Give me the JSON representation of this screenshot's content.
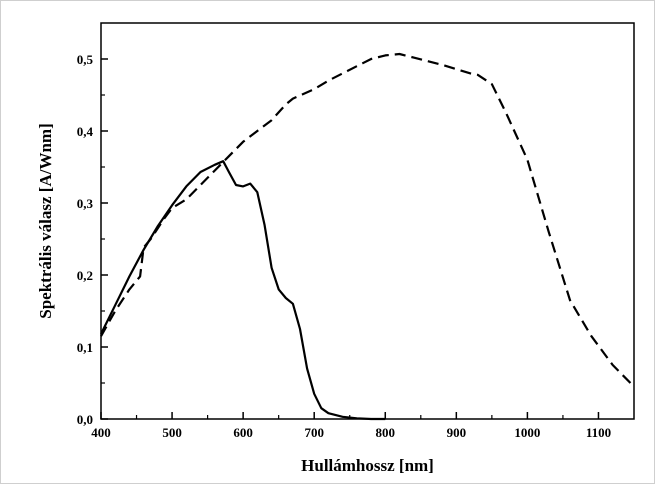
{
  "chart_data": {
    "type": "line",
    "xlabel": "Hullámhossz [nm]",
    "ylabel": "Spektrális válasz [A/Wnm]",
    "xlim": [
      400,
      1150
    ],
    "ylim": [
      0.0,
      0.55
    ],
    "x_ticks": [
      400,
      500,
      600,
      700,
      800,
      900,
      1000,
      1100
    ],
    "x_tick_labels": [
      "400",
      "500",
      "600",
      "700",
      "800",
      "900",
      "1000",
      "1100"
    ],
    "y_ticks": [
      0.0,
      0.1,
      0.2,
      0.3,
      0.4,
      0.5
    ],
    "y_tick_labels": [
      "0,0",
      "0,1",
      "0,2",
      "0,3",
      "0,4",
      "0,5"
    ],
    "grid": false,
    "legend": "none",
    "series": [
      {
        "style": "solid",
        "color": "#000000",
        "x": [
          400,
          420,
          440,
          460,
          480,
          500,
          520,
          540,
          560,
          572,
          580,
          590,
          600,
          610,
          620,
          630,
          640,
          650,
          660,
          670,
          680,
          690,
          700,
          710,
          720,
          740,
          760,
          780,
          800
        ],
        "y": [
          0.118,
          0.158,
          0.198,
          0.235,
          0.268,
          0.297,
          0.323,
          0.343,
          0.353,
          0.358,
          0.343,
          0.325,
          0.323,
          0.327,
          0.315,
          0.27,
          0.21,
          0.18,
          0.168,
          0.16,
          0.125,
          0.07,
          0.035,
          0.015,
          0.008,
          0.003,
          0.001,
          0.0,
          0.0
        ]
      },
      {
        "style": "dashed",
        "color": "#000000",
        "x": [
          400,
          420,
          440,
          455,
          460,
          470,
          490,
          500,
          520,
          540,
          560,
          580,
          600,
          620,
          640,
          660,
          670,
          700,
          720,
          760,
          780,
          800,
          820,
          840,
          880,
          920,
          930,
          950,
          970,
          1000,
          1030,
          1060,
          1090,
          1120,
          1150
        ],
        "y": [
          0.115,
          0.15,
          0.18,
          0.198,
          0.238,
          0.25,
          0.28,
          0.293,
          0.305,
          0.325,
          0.345,
          0.365,
          0.385,
          0.4,
          0.415,
          0.437,
          0.445,
          0.458,
          0.47,
          0.49,
          0.5,
          0.505,
          0.507,
          0.502,
          0.492,
          0.48,
          0.478,
          0.465,
          0.425,
          0.36,
          0.26,
          0.165,
          0.115,
          0.075,
          0.045
        ]
      }
    ]
  }
}
